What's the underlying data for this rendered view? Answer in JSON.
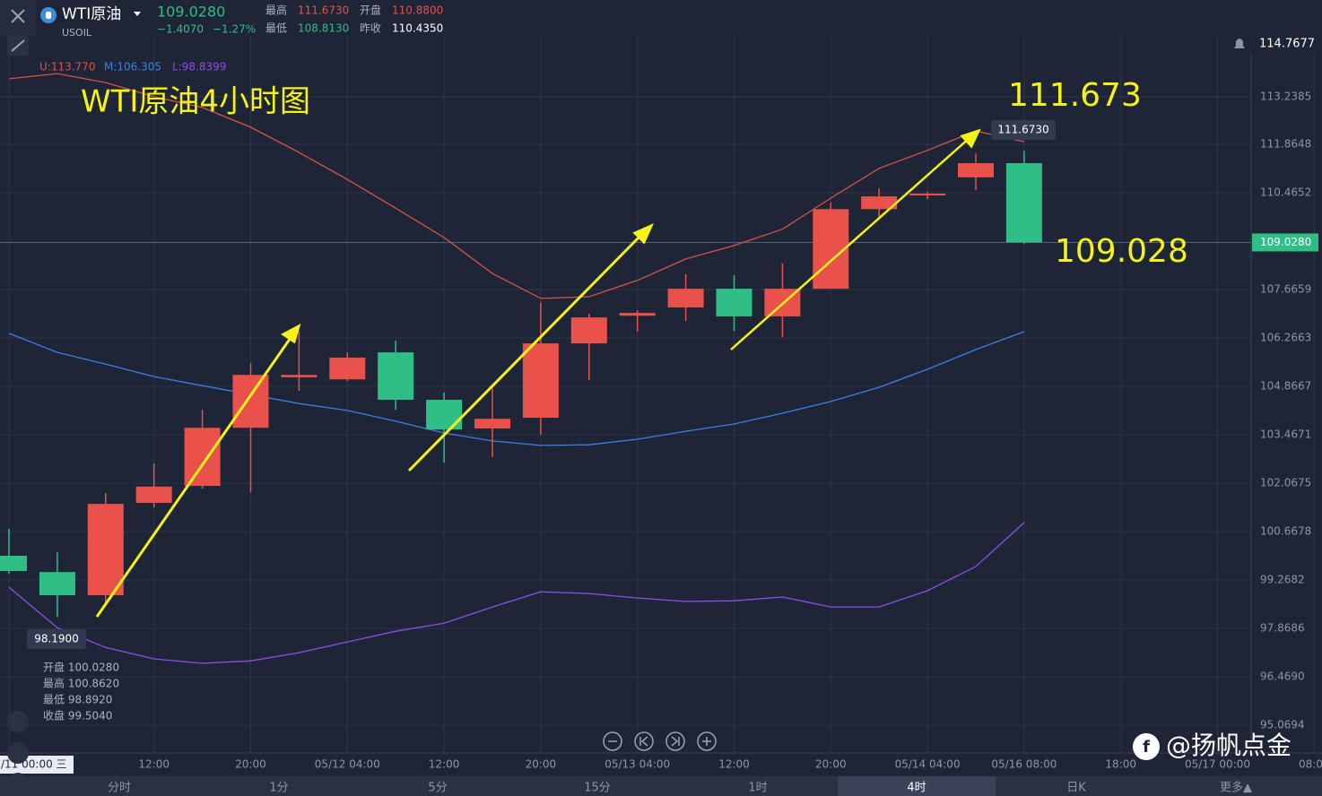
{
  "header": {
    "name": "WTI原油",
    "symbol": "USOIL",
    "price": "109.0280",
    "change": "−1.4070",
    "change_pct": "−1.27%",
    "high_label": "最高",
    "high": "111.6730",
    "open_label": "开盘",
    "open": "110.8800",
    "low_label": "最低",
    "low": "108.8130",
    "prev_label": "昨收",
    "prev": "110.4350"
  },
  "info_panel": [
    "开盘 100.0280",
    "最高 100.8620",
    "最低 98.8920",
    "收盘 99.5040"
  ],
  "tabs": [
    "分时",
    "1分",
    "5分",
    "15分",
    "1时",
    "4时",
    "日K",
    "更多▲"
  ],
  "active_tab": 5,
  "watermark": "@扬帆点金",
  "chart_data": {
    "type": "candlestick",
    "title": "WTI原油4小时图",
    "categories": [
      "/11 00:00 三",
      null,
      null,
      "12:00",
      null,
      "20:00",
      null,
      "05/12 04:00",
      null,
      "12:00",
      null,
      "20:00",
      null,
      "05/13 04:00",
      null,
      "12:00",
      null,
      "20:00",
      null,
      "05/14 04:00",
      null,
      "05/16 08:00",
      null,
      "18:00",
      null,
      "05/17 00:00",
      null,
      "08:00"
    ],
    "open": [
      99.97,
      99.5,
      98.83,
      101.5,
      101.99,
      103.67,
      105.13,
      105.07,
      105.85,
      104.48,
      103.65,
      103.96,
      106.11,
      106.91,
      107.15,
      107.69,
      106.89,
      107.69,
      109.99,
      110.39,
      110.91,
      111.32,
      null,
      null,
      null,
      null,
      null,
      null
    ],
    "high": [
      100.75,
      100.07,
      101.78,
      102.64,
      104.19,
      105.54,
      106.45,
      105.85,
      106.19,
      104.69,
      104.84,
      107.3,
      106.97,
      107.07,
      108.11,
      108.08,
      108.42,
      110.18,
      110.59,
      110.49,
      111.6,
      111.673,
      null,
      null,
      null,
      null,
      null,
      null
    ],
    "low": [
      99.45,
      98.2,
      98.62,
      101.37,
      101.91,
      101.81,
      104.74,
      105.02,
      104.19,
      102.66,
      102.82,
      103.47,
      105.05,
      106.45,
      106.76,
      106.47,
      106.29,
      107.69,
      109.74,
      110.28,
      110.54,
      108.99,
      null,
      null,
      null,
      null,
      null,
      null
    ],
    "close": [
      99.53,
      98.83,
      101.47,
      101.97,
      103.67,
      105.2,
      105.2,
      105.7,
      104.48,
      103.62,
      103.93,
      106.11,
      106.86,
      106.99,
      107.69,
      106.89,
      107.69,
      109.99,
      110.36,
      110.44,
      111.32,
      109.028,
      null,
      null,
      null,
      null,
      null,
      null
    ],
    "up_color": "#e8524a",
    "down_color": "#2fbf86",
    "series": [
      {
        "name": "U:113.770",
        "color": "#d9534a",
        "values": [
          113.76,
          113.91,
          113.65,
          113.24,
          112.93,
          112.36,
          111.63,
          110.85,
          110.02,
          109.17,
          108.13,
          107.41,
          107.46,
          107.93,
          108.55,
          108.94,
          109.41,
          110.31,
          111.17,
          111.69,
          112.25,
          111.94,
          null,
          null,
          null,
          null,
          null,
          null
        ]
      },
      {
        "name": "M:106.305",
        "color": "#3f7fe0",
        "values": [
          106.4,
          105.85,
          105.51,
          105.15,
          104.89,
          104.63,
          104.37,
          104.17,
          103.86,
          103.52,
          103.29,
          103.16,
          103.18,
          103.34,
          103.57,
          103.78,
          104.09,
          104.43,
          104.84,
          105.36,
          105.93,
          106.45,
          null,
          null,
          null,
          null,
          null,
          null
        ]
      },
      {
        "name": "L:98.8399",
        "color": "#8b4fe8",
        "values": [
          99.06,
          97.89,
          97.32,
          96.99,
          96.86,
          96.93,
          97.17,
          97.48,
          97.79,
          98.02,
          98.49,
          98.93,
          98.88,
          98.75,
          98.65,
          98.67,
          98.78,
          98.49,
          98.49,
          98.96,
          99.66,
          100.93,
          null,
          null,
          null,
          null,
          null,
          null
        ]
      }
    ],
    "ylim": [
      94.27,
      115.0
    ],
    "yticks": [
      113.2385,
      111.8648,
      110.4652,
      107.6659,
      106.2663,
      104.8667,
      103.4671,
      102.0675,
      100.6678,
      99.2682,
      97.8686,
      {
        "value": 96.469,
        "label": "96.4690"
      },
      95.0694
    ],
    "last_price": {
      "value": 109.028,
      "label": "109.0280"
    },
    "alert_price": "114.7677",
    "max_marker": "111.6730",
    "min_marker": "98.1900",
    "annotations": [
      "111.673",
      "109.028"
    ],
    "grid": true
  }
}
